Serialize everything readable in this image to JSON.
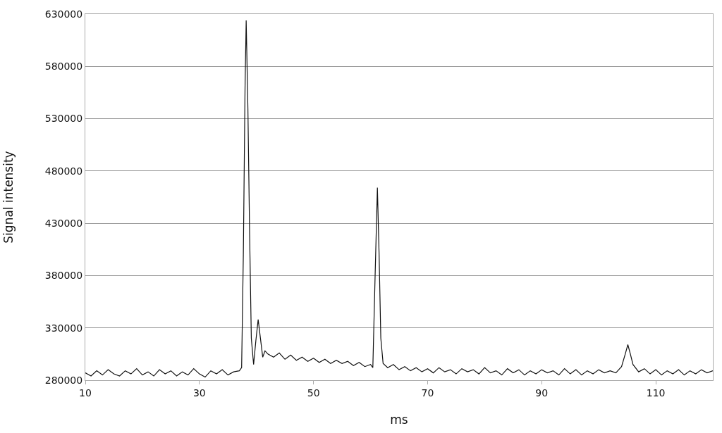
{
  "chart_data": {
    "type": "line",
    "xlabel": "ms",
    "ylabel": "Signal intensity",
    "xlim": [
      10,
      120
    ],
    "xticks": [
      10,
      30,
      50,
      70,
      90,
      110
    ],
    "ylim": [
      280000,
      630000
    ],
    "yticks": [
      280000,
      330000,
      380000,
      430000,
      480000,
      530000,
      580000,
      630000
    ],
    "grid": "y",
    "marker": "none",
    "line_style": "solid",
    "series": [
      {
        "color": "#111111",
        "x": [
          10,
          11,
          12,
          13,
          14,
          15,
          16,
          17,
          18,
          19,
          20,
          21,
          22,
          23,
          24,
          25,
          26,
          27,
          28,
          29,
          30,
          31,
          32,
          33,
          34,
          35,
          36,
          37,
          37.4,
          37.7,
          38.0,
          38.2,
          38.5,
          38.8,
          39.1,
          39.5,
          39.9,
          40.3,
          40.7,
          41.1,
          41.5,
          42,
          43,
          44,
          45,
          46,
          47,
          48,
          49,
          50,
          51,
          52,
          53,
          54,
          55,
          56,
          57,
          58,
          59,
          60,
          60.4,
          60.8,
          61.2,
          61.5,
          61.8,
          62.2,
          63,
          64,
          65,
          66,
          67,
          68,
          69,
          70,
          71,
          72,
          73,
          74,
          75,
          76,
          77,
          78,
          79,
          80,
          81,
          82,
          83,
          84,
          85,
          86,
          87,
          88,
          89,
          90,
          91,
          92,
          93,
          94,
          95,
          96,
          97,
          98,
          99,
          100,
          101,
          102,
          103,
          104,
          104.7,
          105.1,
          105.5,
          106,
          107,
          108,
          109,
          110,
          111,
          112,
          113,
          114,
          115,
          116,
          117,
          118,
          119,
          120
        ],
        "values": [
          287000,
          284000,
          289000,
          285000,
          290000,
          286000,
          284000,
          289000,
          286000,
          291000,
          285000,
          288000,
          284000,
          290000,
          286000,
          289000,
          284000,
          288000,
          285000,
          291000,
          286000,
          283000,
          289000,
          286000,
          290000,
          285000,
          288000,
          289000,
          292000,
          400000,
          560000,
          624000,
          540000,
          420000,
          320000,
          295000,
          318000,
          338000,
          320000,
          302000,
          308000,
          305000,
          302000,
          306000,
          300000,
          304000,
          299000,
          302000,
          298000,
          301000,
          297000,
          300000,
          296000,
          299000,
          296000,
          298000,
          294000,
          297000,
          293000,
          295000,
          292000,
          380000,
          464000,
          400000,
          320000,
          296000,
          292000,
          295000,
          290000,
          293000,
          289000,
          292000,
          288000,
          291000,
          287000,
          292000,
          288000,
          290000,
          286000,
          291000,
          288000,
          290000,
          286000,
          292000,
          287000,
          289000,
          285000,
          291000,
          287000,
          290000,
          285000,
          289000,
          286000,
          290000,
          287000,
          289000,
          285000,
          291000,
          286000,
          290000,
          285000,
          289000,
          286000,
          290000,
          287000,
          289000,
          287000,
          293000,
          306000,
          314000,
          306000,
          295000,
          288000,
          291000,
          286000,
          290000,
          285000,
          289000,
          286000,
          290000,
          285000,
          289000,
          286000,
          290000,
          287000,
          289000
        ]
      }
    ]
  }
}
